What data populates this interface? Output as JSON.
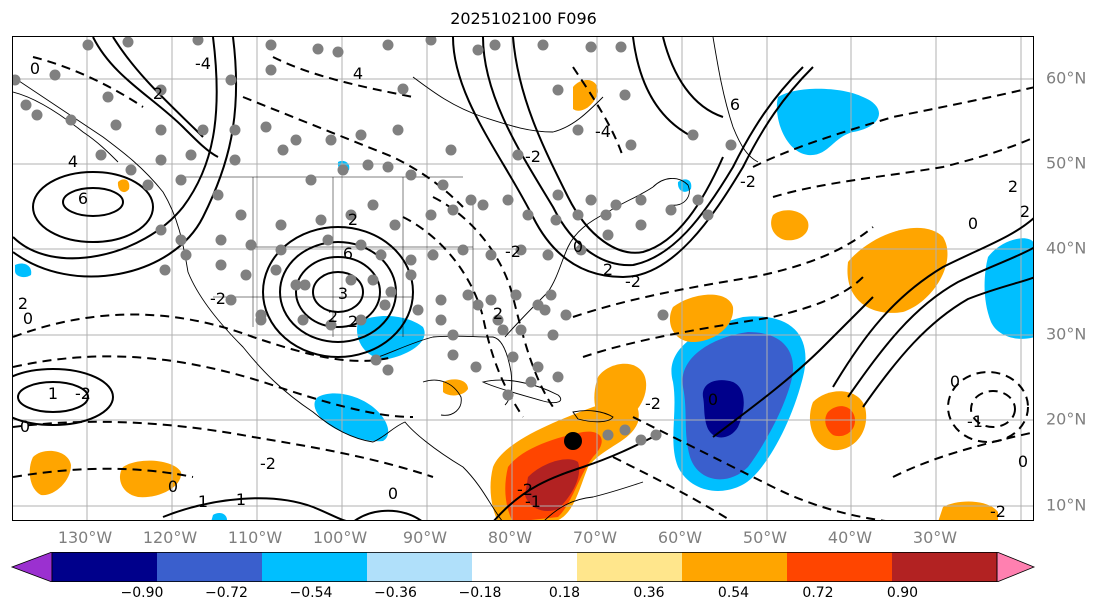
{
  "title": "2025102100 F096",
  "map": {
    "lon_labels": [
      "130°W",
      "120°W",
      "110°W",
      "100°W",
      "90°W",
      "80°W",
      "70°W",
      "60°W",
      "50°W",
      "40°W",
      "30°W"
    ],
    "lat_labels": [
      "60°N",
      "50°N",
      "40°N",
      "30°N",
      "20°N",
      "10°N"
    ],
    "contour_labels": [
      "6",
      "4",
      "2",
      "6",
      "2",
      "0",
      "-2",
      "-4",
      "2",
      "0",
      "-2",
      "-2",
      "0",
      "-2",
      "2",
      "-1",
      "0",
      "1",
      "-2",
      "0",
      "1",
      "0",
      "1",
      "-1",
      "0",
      "-2",
      "6",
      "2",
      "-2",
      "3",
      "2",
      "0",
      "-2",
      "-4",
      "2",
      "-2",
      "0",
      "3",
      "4",
      "2",
      "-2",
      "0",
      "2"
    ],
    "storm_marker": "storm-center"
  },
  "colorbar": {
    "ticks": [
      "−0.90",
      "−0.72",
      "−0.54",
      "−0.36",
      "−0.18",
      "0.18",
      "0.36",
      "0.54",
      "0.72",
      "0.90"
    ],
    "colors": [
      "#9b30d0",
      "#00008b",
      "#3a5fcd",
      "#00bfff",
      "#b0e0fa",
      "#ffffff",
      "#ffe68c",
      "#ffa500",
      "#ff4500",
      "#b22222",
      "#ff80b0"
    ]
  }
}
